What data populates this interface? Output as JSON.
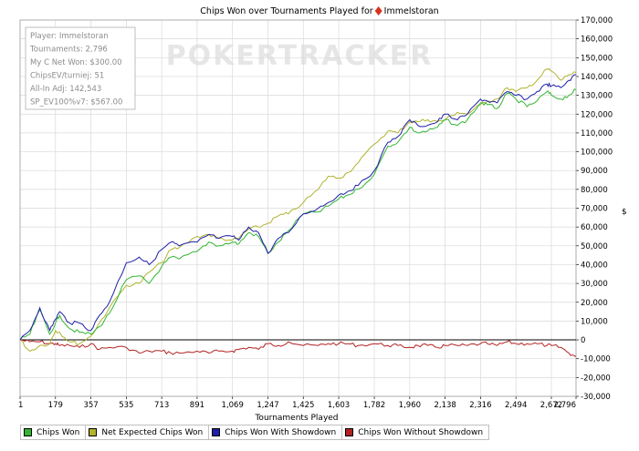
{
  "chart_data": {
    "type": "line",
    "title": "Chips Won over Tournaments Played for",
    "title_player": "Immelstoran",
    "xlabel": "Tournaments Played",
    "ylabel": "",
    "xlim": [
      1,
      2796
    ],
    "ylim": [
      -30000,
      170000
    ],
    "x_ticks": [
      "1",
      "179",
      "357",
      "535",
      "713",
      "891",
      "1,069",
      "1,247",
      "1,425",
      "1,603",
      "1,782",
      "1,960",
      "2,138",
      "2,316",
      "2,494",
      "2,672",
      "2,796"
    ],
    "x_tick_values": [
      1,
      179,
      357,
      535,
      713,
      891,
      1069,
      1247,
      1425,
      1603,
      1782,
      1960,
      2138,
      2316,
      2494,
      2672,
      2796
    ],
    "y_ticks": [
      "-30,000",
      "-20,000",
      "-10,000",
      "0",
      "10,000",
      "20,000",
      "30,000",
      "40,000",
      "50,000",
      "60,000",
      "70,000",
      "80,000",
      "90,000",
      "100,000",
      "110,000",
      "120,000",
      "130,000",
      "140,000",
      "150,000",
      "160,000",
      "170,000"
    ],
    "y_tick_values": [
      -30000,
      -20000,
      -10000,
      0,
      10000,
      20000,
      30000,
      40000,
      50000,
      60000,
      70000,
      80000,
      90000,
      100000,
      110000,
      120000,
      130000,
      140000,
      150000,
      160000,
      170000
    ],
    "y_unit": "$",
    "grid": true,
    "legend_position": "bottom",
    "x": [
      1,
      50,
      100,
      150,
      179,
      200,
      250,
      300,
      357,
      400,
      450,
      535,
      600,
      650,
      713,
      760,
      800,
      891,
      950,
      1000,
      1069,
      1100,
      1150,
      1200,
      1247,
      1300,
      1350,
      1425,
      1500,
      1550,
      1603,
      1650,
      1700,
      1782,
      1850,
      1900,
      1960,
      2000,
      2050,
      2100,
      2138,
      2200,
      2250,
      2316,
      2350,
      2400,
      2450,
      2494,
      2550,
      2600,
      2650,
      2672,
      2720,
      2760,
      2796
    ],
    "series": [
      {
        "name": "Chips Won",
        "color": "#33b533",
        "values": [
          0,
          3000,
          16000,
          3000,
          9000,
          13000,
          6000,
          4000,
          3000,
          7000,
          14000,
          32000,
          34000,
          30000,
          39000,
          44000,
          43000,
          47000,
          52000,
          50000,
          52000,
          51000,
          57000,
          55000,
          46000,
          52000,
          58000,
          67000,
          68000,
          71000,
          75000,
          77000,
          80000,
          88000,
          103000,
          105000,
          113000,
          110000,
          111000,
          113000,
          117000,
          114000,
          117000,
          126000,
          125000,
          123000,
          131000,
          128000,
          124000,
          127000,
          132000,
          130000,
          128000,
          130000,
          133000
        ]
      },
      {
        "name": "Net Expected Chips Won",
        "color": "#b0b32f",
        "values": [
          0,
          -6000,
          -3000,
          -2000,
          5000,
          4000,
          -1000,
          -2000,
          2000,
          9000,
          17000,
          29000,
          30000,
          36000,
          41000,
          48000,
          49000,
          55000,
          56000,
          54000,
          53000,
          54000,
          59000,
          60000,
          62000,
          66000,
          67000,
          73000,
          80000,
          87000,
          86000,
          89000,
          94000,
          104000,
          111000,
          110000,
          116000,
          116000,
          117000,
          116000,
          117000,
          121000,
          120000,
          125000,
          127000,
          128000,
          134000,
          132000,
          134000,
          138000,
          144000,
          143000,
          138000,
          141000,
          142000
        ]
      },
      {
        "name": "Chips Won With Showdown",
        "color": "#1f1fa8",
        "values": [
          0,
          5000,
          17000,
          5000,
          11000,
          15000,
          9000,
          9000,
          5000,
          13000,
          20000,
          41000,
          44000,
          40000,
          48000,
          52000,
          50000,
          52000,
          56000,
          54000,
          55000,
          53000,
          60000,
          57000,
          46000,
          54000,
          57000,
          67000,
          70000,
          73000,
          77000,
          79000,
          82000,
          90000,
          105000,
          108000,
          117000,
          114000,
          114000,
          116000,
          120000,
          117000,
          120000,
          128000,
          127000,
          126000,
          132000,
          130000,
          128000,
          132000,
          136000,
          135000,
          134000,
          138000,
          141000
        ]
      },
      {
        "name": "Chips Won Without Showdown",
        "color": "#b22222",
        "values": [
          0,
          -1000,
          -1000,
          -2000,
          -2000,
          -3000,
          -3000,
          -4000,
          -2000,
          -5000,
          -4000,
          -4000,
          -7000,
          -6000,
          -6000,
          -7000,
          -7000,
          -6000,
          -7000,
          -6000,
          -6000,
          -5000,
          -4000,
          -5000,
          -2000,
          -3000,
          -1000,
          -3000,
          -3000,
          -2000,
          -2000,
          -2000,
          -3000,
          -2000,
          -3000,
          -3000,
          -4000,
          -3000,
          -3000,
          -4000,
          -3000,
          -3000,
          -3000,
          -2000,
          -2000,
          -3000,
          -1000,
          -2000,
          -2000,
          -2000,
          -3000,
          -3000,
          -4000,
          -7000,
          -9000
        ]
      }
    ]
  },
  "info_box": {
    "player": "Player: Immelstoran",
    "tournaments": "Tournaments: 2,796",
    "net_won": "My C Net Won: $300.00",
    "chips_ev": "ChipsEV/turniej: 51",
    "allin_adj": "All-In Adj: 142,543",
    "sp_ev": "SP_EV100%v7: $567.00"
  },
  "watermark": "POKERTRACKER",
  "colors": {
    "axis": "#000000",
    "grid": "#d9d9d9",
    "frame": "#a0a0a0",
    "suit": "#d9331a"
  }
}
